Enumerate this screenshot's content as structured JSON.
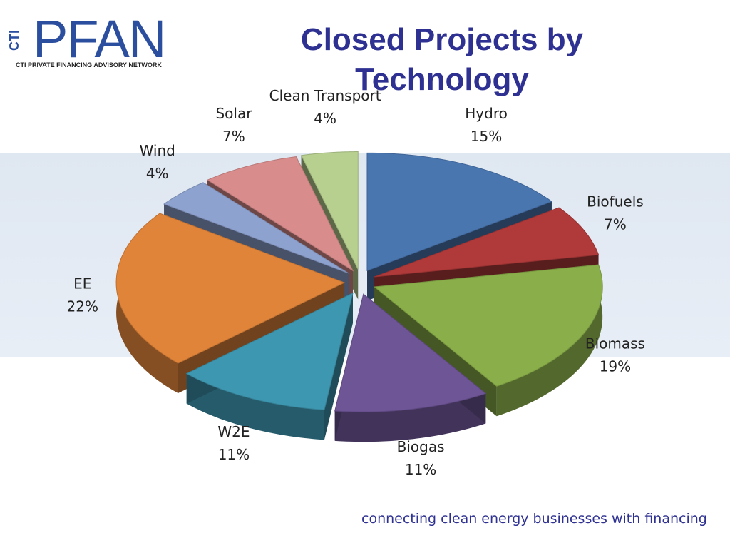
{
  "header": {
    "logo": "PFAN",
    "logo_side": "CTI",
    "network": "CTI PRIVATE FINANCING ADVISORY NETWORK"
  },
  "chart_data": {
    "type": "pie",
    "title": "Closed Projects by Technology",
    "categories": [
      "Hydro",
      "Biofuels",
      "Biomass",
      "Biogas",
      "W2E",
      "EE",
      "Wind",
      "Solar",
      "Clean Transport"
    ],
    "values": [
      15,
      7,
      19,
      11,
      11,
      22,
      4,
      7,
      4
    ],
    "value_labels": [
      "15%",
      "7%",
      "19%",
      "11%",
      "11%",
      "22%",
      "4%",
      "7%",
      "4%"
    ],
    "colors": [
      "#4a76b0",
      "#b03a3a",
      "#8aae4a",
      "#6e5596",
      "#3e97b0",
      "#e0843a",
      "#8ea2cf",
      "#d98c8c",
      "#b7cf8f"
    ]
  },
  "footer": "connecting clean energy businesses with financing"
}
